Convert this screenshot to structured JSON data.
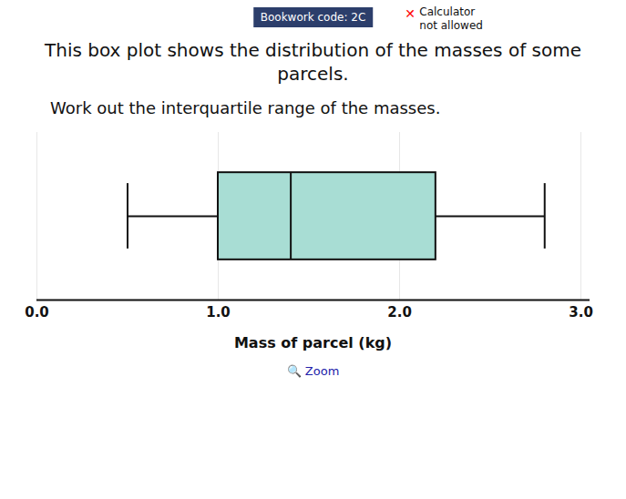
{
  "chart_data": {
    "type": "box",
    "title": "This box plot shows the distribution of the masses of some parcels.",
    "subtitle": "Work out the interquartile range of the masses.",
    "annotations": [
      {
        "text": "Bookwork code: 2C",
        "color": "#2c3e6b"
      },
      {
        "text": "Calculator"
      },
      {
        "text": "not allowed"
      },
      {
        "text": "✕",
        "color": "red"
      },
      {
        "text": "🔍 Zoom",
        "color": "#2222aa"
      }
    ],
    "xlabel": "Mass of parcel (kg)",
    "box": {
      "min": 0.5,
      "q1": 1.0,
      "median": 1.4,
      "q3": 2.2,
      "max": 2.8
    },
    "color": "#a8ddd4",
    "xlim": [
      0,
      3.05
    ],
    "xticks": [
      0,
      1,
      2,
      3
    ],
    "grid": true,
    "tick_labels": "x"
  }
}
